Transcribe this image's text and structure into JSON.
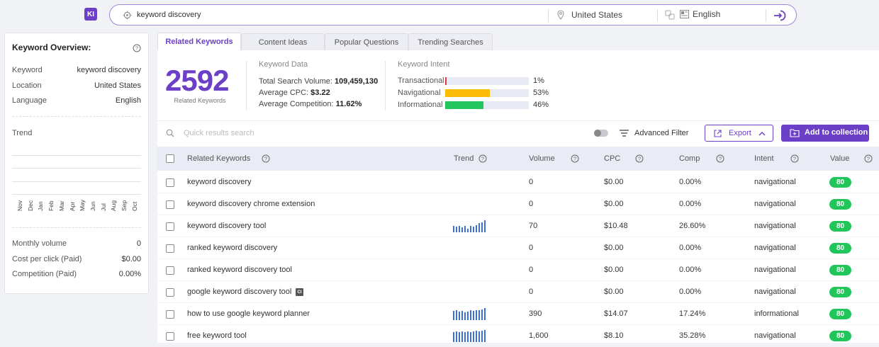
{
  "app": {
    "logo": "KI"
  },
  "search": {
    "query": "keyword discovery",
    "location": "United States",
    "language": "English"
  },
  "overview": {
    "title": "Keyword Overview:",
    "rows": [
      {
        "label": "Keyword",
        "value": "keyword discovery"
      },
      {
        "label": "Location",
        "value": "United States"
      },
      {
        "label": "Language",
        "value": "English"
      }
    ],
    "trend_label": "Trend",
    "months": [
      "Nov",
      "Dec",
      "Jan",
      "Feb",
      "Mar",
      "Apr",
      "May",
      "Jun",
      "Jul",
      "Aug",
      "Sep",
      "Oct"
    ],
    "stats": [
      {
        "label": "Monthly volume",
        "value": "0"
      },
      {
        "label": "Cost per click (Paid)",
        "value": "$0.00"
      },
      {
        "label": "Competition (Paid)",
        "value": "0.00%"
      }
    ]
  },
  "tabs": [
    {
      "label": "Related Keywords",
      "active": true
    },
    {
      "label": "Content Ideas",
      "active": false
    },
    {
      "label": "Popular Questions",
      "active": false
    },
    {
      "label": "Trending Searches",
      "active": false
    }
  ],
  "summary": {
    "count": "2592",
    "count_label": "Related Keywords",
    "data_title": "Keyword Data",
    "total_volume_label": "Total Search Volume:",
    "total_volume": "109,459,130",
    "avg_cpc_label": "Average CPC:",
    "avg_cpc": "$3.22",
    "avg_comp_label": "Average Competition:",
    "avg_comp": "11.62%",
    "intent_title": "Keyword Intent",
    "intents": [
      {
        "label": "Transactional",
        "pct": "1%",
        "fraction": 0.01,
        "color": "#e53935"
      },
      {
        "label": "Navigational",
        "pct": "53%",
        "fraction": 0.53,
        "color": "#fbbc05"
      },
      {
        "label": "Informational",
        "pct": "46%",
        "fraction": 0.46,
        "color": "#22c55e"
      }
    ]
  },
  "toolbar": {
    "quick_search_placeholder": "Quick results search",
    "advanced_filter": "Advanced Filter",
    "export": "Export",
    "add_collection": "Add to collection"
  },
  "table": {
    "headers": {
      "keyword": "Related Keywords",
      "trend": "Trend",
      "volume": "Volume",
      "cpc": "CPC",
      "comp": "Comp",
      "intent": "Intent",
      "value": "Value"
    },
    "rows": [
      {
        "keyword": "keyword discovery",
        "trend": [],
        "volume": "0",
        "cpc": "$0.00",
        "comp": "0.00%",
        "intent": "navigational",
        "value": "80",
        "ci": false
      },
      {
        "keyword": "keyword discovery chrome extension",
        "trend": [],
        "volume": "0",
        "cpc": "$0.00",
        "comp": "0.00%",
        "intent": "navigational",
        "value": "80",
        "ci": false
      },
      {
        "keyword": "keyword discovery tool",
        "trend": [
          0.5,
          0.45,
          0.5,
          0.4,
          0.5,
          0.3,
          0.55,
          0.45,
          0.6,
          0.75,
          0.85,
          1.0
        ],
        "volume": "70",
        "cpc": "$10.48",
        "comp": "26.60%",
        "intent": "navigational",
        "value": "80",
        "ci": false
      },
      {
        "keyword": "ranked keyword discovery",
        "trend": [],
        "volume": "0",
        "cpc": "$0.00",
        "comp": "0.00%",
        "intent": "navigational",
        "value": "80",
        "ci": false
      },
      {
        "keyword": "ranked keyword discovery tool",
        "trend": [],
        "volume": "0",
        "cpc": "$0.00",
        "comp": "0.00%",
        "intent": "navigational",
        "value": "80",
        "ci": false
      },
      {
        "keyword": "google keyword discovery tool",
        "trend": [],
        "volume": "0",
        "cpc": "$0.00",
        "comp": "0.00%",
        "intent": "navigational",
        "value": "80",
        "ci": true,
        "ci_label": "CI"
      },
      {
        "keyword": "how to use google keyword planner",
        "trend": [
          0.75,
          0.8,
          0.7,
          0.75,
          0.65,
          0.7,
          0.8,
          0.75,
          0.8,
          0.85,
          0.9,
          1.0
        ],
        "volume": "390",
        "cpc": "$14.07",
        "comp": "17.24%",
        "intent": "informational",
        "value": "80",
        "ci": false
      },
      {
        "keyword": "free keyword tool",
        "trend": [
          0.85,
          0.9,
          0.85,
          0.9,
          0.85,
          0.9,
          0.85,
          0.9,
          0.95,
          0.9,
          0.95,
          1.0
        ],
        "volume": "1,600",
        "cpc": "$8.10",
        "comp": "35.28%",
        "intent": "navigational",
        "value": "80",
        "ci": false
      }
    ]
  }
}
